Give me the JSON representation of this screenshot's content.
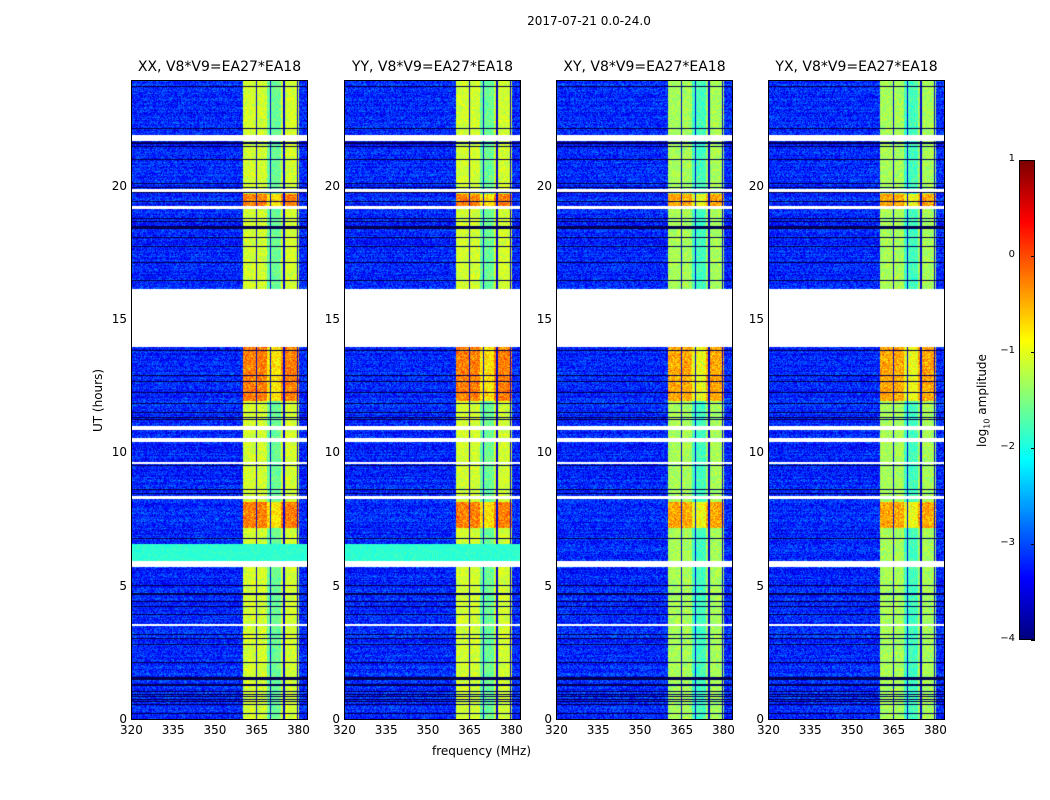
{
  "chart_data": {
    "type": "heatmap",
    "title": "2017-07-21 0.0-24.0",
    "xlabel": "frequency (MHz)",
    "ylabel": "UT (hours)",
    "xlim": [
      320,
      383.6
    ],
    "ylim": [
      0,
      24
    ],
    "xticks": [
      "320",
      "335",
      "350",
      "365",
      "380"
    ],
    "xtick_values": [
      320,
      335,
      350,
      365,
      380
    ],
    "yticks": [
      "0",
      "5",
      "10",
      "15",
      "20"
    ],
    "ytick_values": [
      0,
      5,
      10,
      15,
      20
    ],
    "panels": [
      {
        "title": "XX, V8*V9=EA27*EA18"
      },
      {
        "title": "YY, V8*V9=EA27*EA18"
      },
      {
        "title": "XY, V8*V9=EA27*EA18"
      },
      {
        "title": "YX, V8*V9=EA27*EA18"
      }
    ],
    "colorbar": {
      "label": "log10 amplitude",
      "label_main": "log",
      "label_sub": "10",
      "label_rest": " amplitude",
      "range": [
        -4,
        1
      ],
      "ticks": [
        "1",
        "0",
        "−1",
        "−2",
        "−3",
        "−4"
      ],
      "tick_values": [
        1,
        0,
        -1,
        -2,
        -3,
        -4
      ],
      "colormap": "jet"
    },
    "signal_band_mhz": [
      360.3,
      380.5
    ],
    "flagged_hours": [
      [
        14.0,
        16.2
      ],
      [
        21.75,
        22.0
      ],
      [
        19.85,
        19.95
      ],
      [
        19.2,
        19.3
      ],
      [
        10.45,
        10.6
      ],
      [
        10.9,
        11.05
      ],
      [
        5.75,
        5.95
      ],
      [
        8.3,
        8.4
      ],
      [
        3.5,
        3.6
      ],
      [
        9.6,
        9.7
      ]
    ],
    "strong_rfi_hours": [
      [
        19.3,
        19.75
      ],
      [
        12.0,
        14.0
      ],
      [
        7.2,
        8.2
      ]
    ],
    "background_level_log": -3.2,
    "band_level_log": -1.2
  }
}
